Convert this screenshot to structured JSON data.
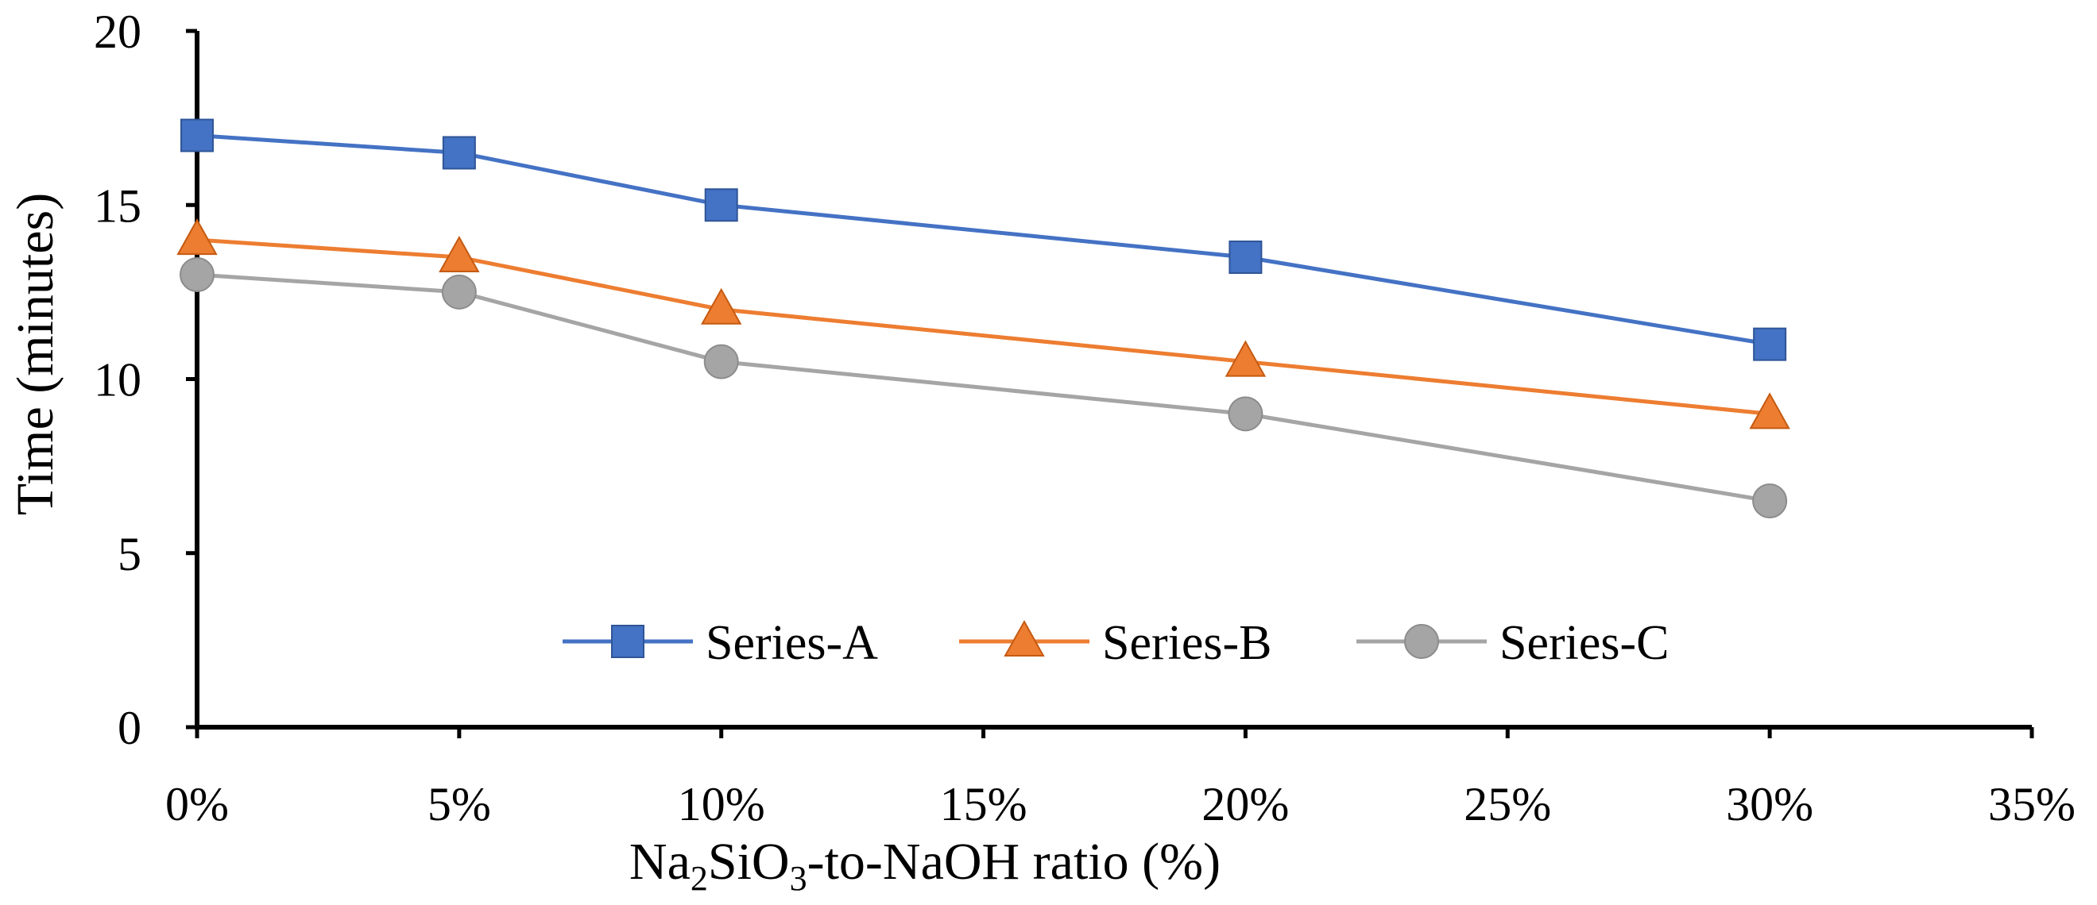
{
  "chart_data": {
    "type": "line",
    "title": "",
    "x": [
      0,
      5,
      10,
      20,
      30
    ],
    "xlabel_parts": {
      "prefix": "Na",
      "sub1": "2",
      "mid": "SiO",
      "sub2": "3",
      "suffix": "-to-NaOH ratio (%)"
    },
    "ylabel": "Time (minutes)",
    "xlim": [
      0,
      35
    ],
    "ylim": [
      0,
      20
    ],
    "xticks": [
      0,
      5,
      10,
      15,
      20,
      25,
      30,
      35
    ],
    "xtick_labels": [
      "0%",
      "5%",
      "10%",
      "15%",
      "20%",
      "25%",
      "30%",
      "35%"
    ],
    "yticks": [
      0,
      5,
      10,
      15,
      20
    ],
    "ytick_labels": [
      "0",
      "5",
      "10",
      "15",
      "20"
    ],
    "grid": false,
    "legend_position": "inside-bottom-center",
    "series": [
      {
        "name": "Series-A",
        "values": [
          17,
          16.5,
          15,
          13.5,
          11
        ],
        "color": "#4472C4",
        "marker": "square"
      },
      {
        "name": "Series-B",
        "values": [
          14,
          13.5,
          12,
          10.5,
          9
        ],
        "color": "#ED7D31",
        "marker": "triangle"
      },
      {
        "name": "Series-C",
        "values": [
          13,
          12.5,
          10.5,
          9,
          6.5
        ],
        "color": "#A5A5A5",
        "marker": "circle"
      }
    ]
  }
}
